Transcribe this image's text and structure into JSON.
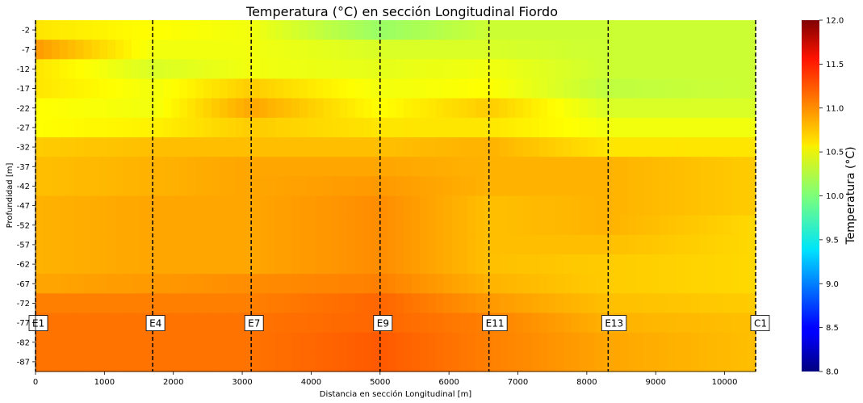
{
  "chart_data": {
    "type": "heatmap",
    "title": "Temperatura (°C) en sección Longitudinal Fiordo",
    "xlabel": "Distancia en sección Longitudinal [m]",
    "ylabel": "Profundidad [m]",
    "xlim": [
      0,
      10450
    ],
    "x_ticks": [
      0,
      1000,
      2000,
      3000,
      4000,
      5000,
      6000,
      7000,
      8000,
      9000,
      10000
    ],
    "y_ticks": [
      "-2",
      "-7",
      "-12",
      "-17",
      "-22",
      "-27",
      "-32",
      "-37",
      "-42",
      "-47",
      "-52",
      "-57",
      "-62",
      "-67",
      "-72",
      "-77",
      "-82",
      "-87"
    ],
    "colorbar": {
      "label": "Temperatura (°C)",
      "range": [
        8.0,
        12.0
      ],
      "ticks": [
        "8.0",
        "8.5",
        "9.0",
        "9.5",
        "10.0",
        "10.5",
        "11.0",
        "11.5",
        "12.0"
      ],
      "colormap": "jet"
    },
    "stations": [
      {
        "name": "E1",
        "x": 0
      },
      {
        "name": "E4",
        "x": 1700
      },
      {
        "name": "E7",
        "x": 3130
      },
      {
        "name": "E9",
        "x": 5000
      },
      {
        "name": "E11",
        "x": 6580
      },
      {
        "name": "E13",
        "x": 8310
      },
      {
        "name": "C1",
        "x": 10450
      }
    ],
    "grid": false,
    "temperature_profiles": [
      {
        "station": "E1",
        "values": [
          10.6,
          10.9,
          10.6,
          10.6,
          10.5,
          10.5,
          10.7,
          10.75,
          10.75,
          10.8,
          10.8,
          10.8,
          10.8,
          10.85,
          11.0,
          11.05,
          11.05,
          11.05
        ]
      },
      {
        "station": "E4",
        "values": [
          10.5,
          10.45,
          10.35,
          10.45,
          10.45,
          10.55,
          10.75,
          10.8,
          10.8,
          10.85,
          10.85,
          10.85,
          10.85,
          10.9,
          11.0,
          11.05,
          11.05,
          11.05
        ]
      },
      {
        "station": "E7",
        "values": [
          10.45,
          10.45,
          10.45,
          10.7,
          10.85,
          10.7,
          10.75,
          10.85,
          10.85,
          10.85,
          10.85,
          10.85,
          10.85,
          10.95,
          11.0,
          11.05,
          11.05,
          11.05
        ]
      },
      {
        "station": "E9",
        "values": [
          10.1,
          10.35,
          10.4,
          10.45,
          10.5,
          10.6,
          10.75,
          10.85,
          10.9,
          10.95,
          10.95,
          10.95,
          10.95,
          11.0,
          11.1,
          11.1,
          11.15,
          11.15
        ]
      },
      {
        "station": "E11",
        "values": [
          10.3,
          10.35,
          10.45,
          10.5,
          10.7,
          10.6,
          10.8,
          10.8,
          10.8,
          10.75,
          10.75,
          10.75,
          10.75,
          10.8,
          10.9,
          11.0,
          11.0,
          11.0
        ]
      },
      {
        "station": "E13",
        "values": [
          10.3,
          10.3,
          10.3,
          10.25,
          10.35,
          10.45,
          10.6,
          10.8,
          10.8,
          10.8,
          10.8,
          10.75,
          10.7,
          10.7,
          10.75,
          10.8,
          10.85,
          10.85
        ]
      },
      {
        "station": "C1",
        "values": [
          10.3,
          10.3,
          10.3,
          10.3,
          10.35,
          10.45,
          10.6,
          10.7,
          10.7,
          10.7,
          10.65,
          10.65,
          10.65,
          10.65,
          10.7,
          10.75,
          10.75,
          10.75
        ]
      }
    ]
  }
}
